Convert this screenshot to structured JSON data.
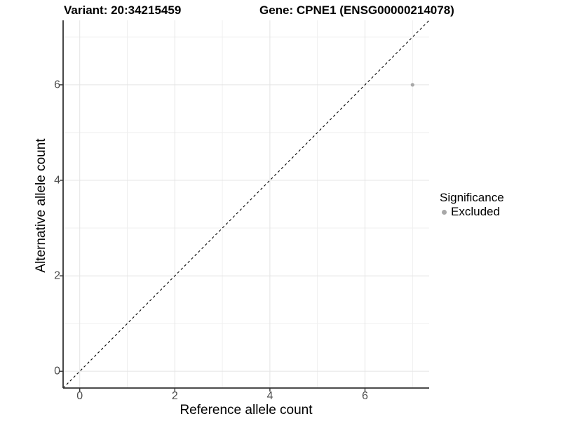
{
  "header": {
    "variant_title": "Variant: 20:34215459",
    "gene_title": "Gene: CPNE1 (ENSG00000214078)"
  },
  "chart_data": {
    "type": "scatter",
    "title_left": "Variant: 20:34215459",
    "title_right": "Gene: CPNE1 (ENSG00000214078)",
    "xlabel": "Reference allele count",
    "ylabel": "Alternative allele count",
    "xlim": [
      -0.35,
      7.35
    ],
    "ylim": [
      -0.35,
      7.35
    ],
    "x_major_ticks": [
      0,
      2,
      4,
      6
    ],
    "x_minor_ticks": [
      1,
      3,
      5,
      7
    ],
    "y_major_ticks": [
      0,
      2,
      4,
      6
    ],
    "y_minor_ticks": [
      1,
      3,
      5,
      7
    ],
    "grid": true,
    "points": [
      {
        "x": 7,
        "y": 6,
        "significance": "Excluded"
      }
    ],
    "identity_line": {
      "type": "y=x",
      "style": "dashed",
      "from": -0.35,
      "to": 7.35
    },
    "legend_position": "right",
    "colors": {
      "point": "#a8a8a8",
      "identity_line": "#000000",
      "axis_line": "#333333",
      "tick_mark": "#333333",
      "tick_text": "#4d4d4d",
      "grid_major": "#e4e4e4",
      "grid_minor": "#efefef",
      "background": "#ffffff"
    }
  },
  "legend": {
    "title": "Significance",
    "items": [
      {
        "label": "Excluded",
        "color": "#a8a8a8"
      }
    ]
  }
}
